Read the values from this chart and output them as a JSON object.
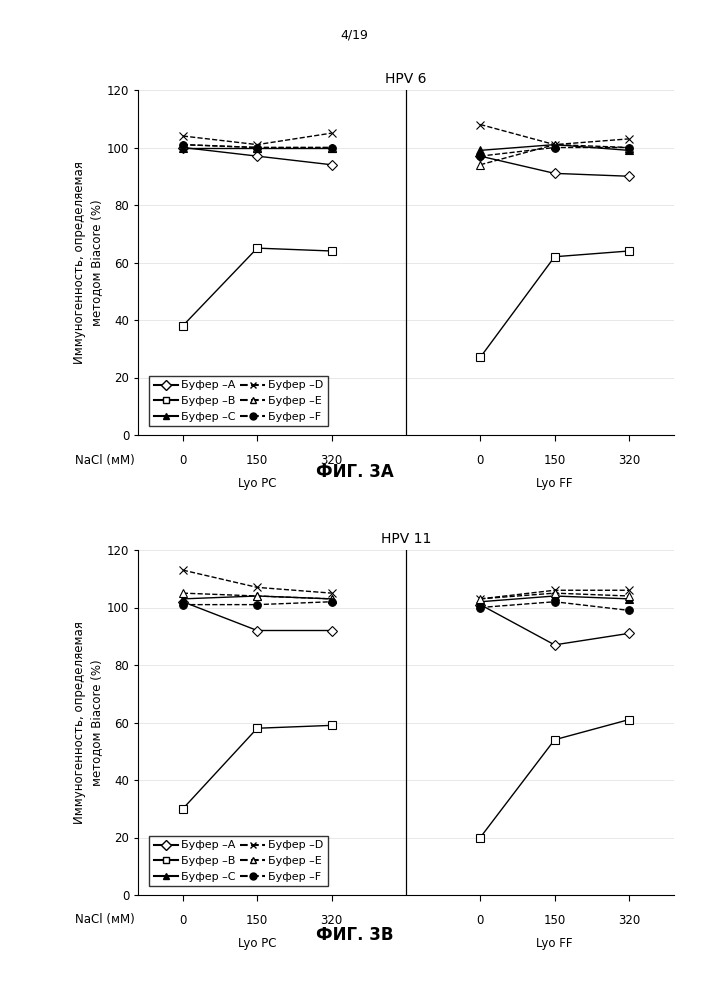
{
  "page_label": "4/19",
  "fig3a": {
    "title": "HPV 6",
    "ylabel_line1": "Иммуногенность, определяемая",
    "ylabel_line2": "методом Biacore (%)",
    "ylim": [
      0,
      120
    ],
    "yticks": [
      0,
      20,
      40,
      60,
      80,
      100,
      120
    ],
    "lyo_pc_label": "Lyo PC",
    "lyo_ff_label": "Lyo FF",
    "xlabel_nacl": "NaCl (мМ)",
    "xtick_labels": [
      "0",
      "150",
      "320",
      "0",
      "150",
      "320"
    ],
    "series": {
      "A": {
        "lyo_pc": [
          100,
          97,
          94
        ],
        "lyo_ff": [
          97,
          91,
          90
        ]
      },
      "B": {
        "lyo_pc": [
          38,
          65,
          64
        ],
        "lyo_ff": [
          27,
          62,
          64
        ]
      },
      "C": {
        "lyo_pc": [
          100,
          100,
          100
        ],
        "lyo_ff": [
          99,
          101,
          99
        ]
      },
      "D": {
        "lyo_pc": [
          104,
          101,
          105
        ],
        "lyo_ff": [
          108,
          101,
          103
        ]
      },
      "E": {
        "lyo_pc": [
          101,
          100,
          100
        ],
        "lyo_ff": [
          94,
          101,
          100
        ]
      },
      "F": {
        "lyo_pc": [
          101,
          100,
          100
        ],
        "lyo_ff": [
          97,
          100,
          100
        ]
      }
    }
  },
  "fig3b": {
    "title": "HPV 11",
    "ylabel_line1": "Иммуногенность, определяемая",
    "ylabel_line2": "методом Biacore (%)",
    "ylim": [
      0,
      120
    ],
    "yticks": [
      0,
      20,
      40,
      60,
      80,
      100,
      120
    ],
    "lyo_pc_label": "Lyo PC",
    "lyo_ff_label": "Lyo FF",
    "xlabel_nacl": "NaCl (мМ)",
    "xtick_labels": [
      "0",
      "150",
      "320",
      "0",
      "150",
      "320"
    ],
    "series": {
      "A": {
        "lyo_pc": [
          102,
          92,
          92
        ],
        "lyo_ff": [
          101,
          87,
          91
        ]
      },
      "B": {
        "lyo_pc": [
          30,
          58,
          59
        ],
        "lyo_ff": [
          20,
          54,
          61
        ]
      },
      "C": {
        "lyo_pc": [
          103,
          104,
          103
        ],
        "lyo_ff": [
          102,
          104,
          103
        ]
      },
      "D": {
        "lyo_pc": [
          113,
          107,
          105
        ],
        "lyo_ff": [
          103,
          106,
          106
        ]
      },
      "E": {
        "lyo_pc": [
          105,
          104,
          103
        ],
        "lyo_ff": [
          103,
          105,
          104
        ]
      },
      "F": {
        "lyo_pc": [
          101,
          101,
          102
        ],
        "lyo_ff": [
          100,
          102,
          99
        ]
      }
    }
  },
  "caption3a": "ФИГ. 3A",
  "caption3b": "ФИГ. 3B",
  "markers": {
    "A": "D",
    "B": "s",
    "C": "^",
    "D": "x",
    "E": "^",
    "F": "o"
  },
  "linestyles": {
    "A": "-",
    "B": "-",
    "C": "-",
    "D": "--",
    "E": "--",
    "F": "--"
  },
  "markerfacecolors": {
    "A": "white",
    "B": "white",
    "C": "black",
    "D": "white",
    "E": "white",
    "F": "black"
  },
  "legend_labels": [
    "Буфер –A",
    "Буфер –B",
    "Буфер –C",
    "Буфер –D",
    "Буфер –E",
    "Буфер –F"
  ]
}
